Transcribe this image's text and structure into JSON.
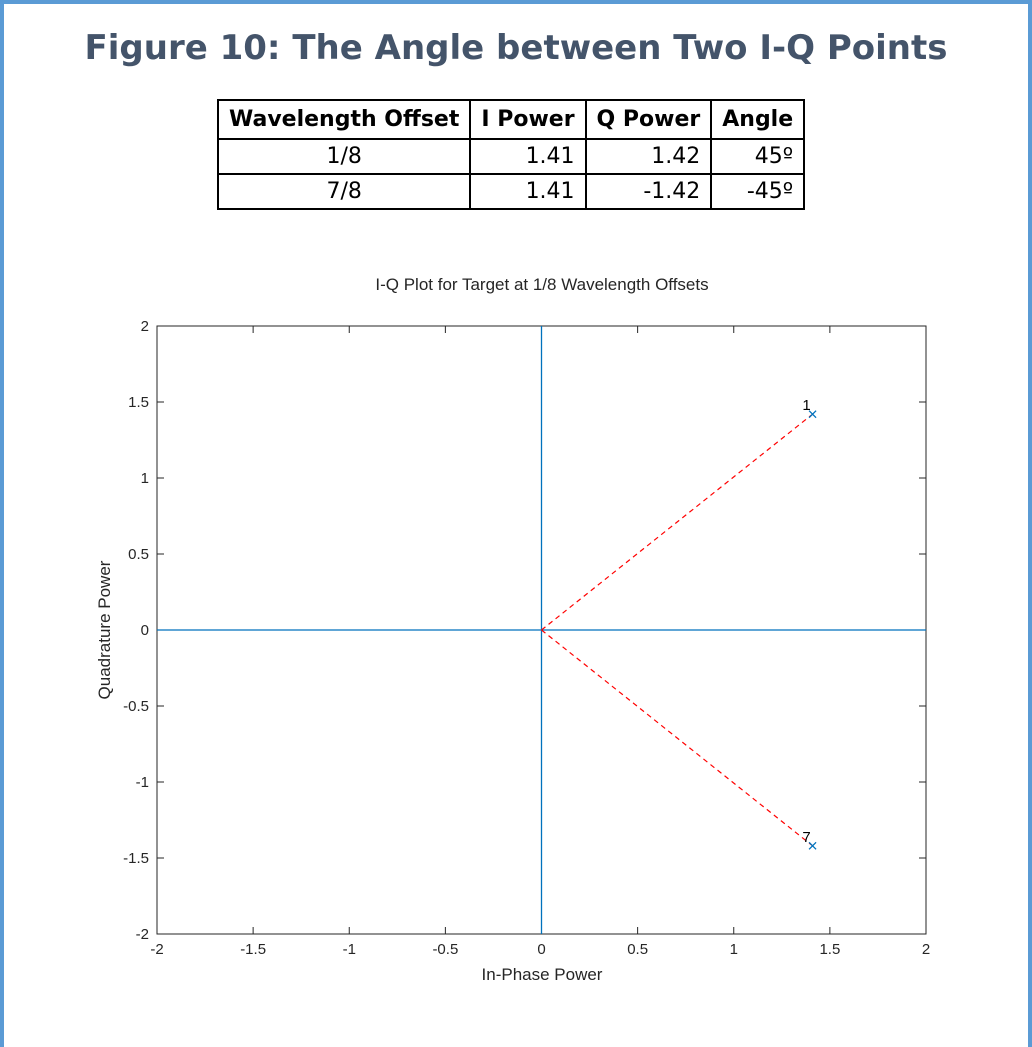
{
  "figure": {
    "title": "Figure 10: The Angle between Two I-Q Points"
  },
  "table": {
    "headers": [
      "Wavelength Offset",
      "I Power",
      "Q Power",
      "Angle"
    ],
    "rows": [
      [
        "1/8",
        "1.41",
        "1.42",
        "45º"
      ],
      [
        "7/8",
        "1.41",
        "-1.42",
        "-45º"
      ]
    ]
  },
  "chart_data": {
    "type": "scatter",
    "title": "I-Q Plot for Target at 1/8 Wavelength Offsets",
    "xlabel": "In-Phase Power",
    "ylabel": "Quadrature Power",
    "xlim": [
      -2,
      2
    ],
    "ylim": [
      -2,
      2
    ],
    "xticks": [
      "-2",
      "-1.5",
      "-1",
      "-0.5",
      "0",
      "0.5",
      "1",
      "1.5",
      "2"
    ],
    "yticks": [
      "2",
      "1.5",
      "1",
      "0.5",
      "0",
      "-0.5",
      "-1",
      "-1.5",
      "-2"
    ],
    "grid": false,
    "points": [
      {
        "label": "1",
        "x": 1.41,
        "y": 1.42
      },
      {
        "label": "7",
        "x": 1.41,
        "y": -1.42
      }
    ],
    "axis_lines": {
      "x": 0,
      "y": 0,
      "color": "#0072bd"
    },
    "vectors_from_origin": {
      "color": "#ff0000",
      "style": "dashed"
    },
    "marker": {
      "symbol": "x",
      "color": "#0072bd"
    }
  }
}
